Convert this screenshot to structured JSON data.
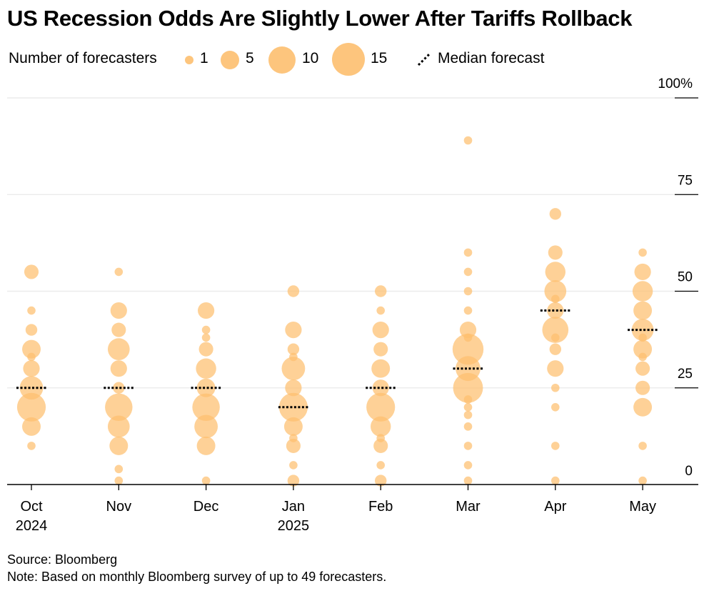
{
  "title": "US Recession Odds Are Slightly Lower After Tariffs Rollback",
  "legend": {
    "size_label": "Number of forecasters",
    "size_entries": [
      "1",
      "5",
      "10",
      "15"
    ],
    "median_label": "Median forecast"
  },
  "footer": {
    "source": "Source: Bloomberg",
    "note": "Note: Based on monthly Bloomberg survey of up to 49 forecasters."
  },
  "chart_data": {
    "type": "scatter",
    "subtype": "bubble",
    "x_categories": [
      {
        "line1": "Oct",
        "line2": "2024"
      },
      {
        "line1": "Nov",
        "line2": ""
      },
      {
        "line1": "Dec",
        "line2": ""
      },
      {
        "line1": "Jan",
        "line2": "2025"
      },
      {
        "line1": "Feb",
        "line2": ""
      },
      {
        "line1": "Mar",
        "line2": ""
      },
      {
        "line1": "Apr",
        "line2": ""
      },
      {
        "line1": "May",
        "line2": ""
      }
    ],
    "y_ticks": [
      "100%",
      "75",
      "50",
      "25",
      "0"
    ],
    "ylim": [
      0,
      100
    ],
    "bubble_color": "#fdbf6f",
    "median_color": "#000000",
    "size_legend_counts": [
      1,
      5,
      10,
      15
    ],
    "months": [
      {
        "median": 25,
        "points": [
          [
            55,
            3
          ],
          [
            45,
            1
          ],
          [
            40,
            2
          ],
          [
            35,
            5
          ],
          [
            33,
            1
          ],
          [
            30,
            4
          ],
          [
            25,
            8
          ],
          [
            20,
            12
          ],
          [
            15,
            5
          ],
          [
            10,
            1
          ]
        ]
      },
      {
        "median": 25,
        "points": [
          [
            55,
            1
          ],
          [
            45,
            4
          ],
          [
            40,
            3
          ],
          [
            35,
            7
          ],
          [
            30,
            4
          ],
          [
            25,
            2
          ],
          [
            20,
            11
          ],
          [
            15,
            7
          ],
          [
            10,
            5
          ],
          [
            4,
            1
          ],
          [
            1,
            1
          ]
        ]
      },
      {
        "median": 25,
        "points": [
          [
            45,
            4
          ],
          [
            40,
            1
          ],
          [
            38,
            1
          ],
          [
            35,
            3
          ],
          [
            30,
            6
          ],
          [
            25,
            5
          ],
          [
            20,
            11
          ],
          [
            15,
            8
          ],
          [
            10,
            5
          ],
          [
            1,
            1
          ]
        ]
      },
      {
        "median": 20,
        "points": [
          [
            50,
            2
          ],
          [
            40,
            4
          ],
          [
            35,
            2
          ],
          [
            33,
            1
          ],
          [
            30,
            8
          ],
          [
            25,
            4
          ],
          [
            20,
            12
          ],
          [
            15,
            5
          ],
          [
            12,
            1
          ],
          [
            10,
            3
          ],
          [
            5,
            1
          ],
          [
            1,
            2
          ]
        ]
      },
      {
        "median": 25,
        "points": [
          [
            50,
            2
          ],
          [
            45,
            1
          ],
          [
            40,
            4
          ],
          [
            35,
            3
          ],
          [
            30,
            5
          ],
          [
            25,
            4
          ],
          [
            20,
            12
          ],
          [
            15,
            6
          ],
          [
            12,
            1
          ],
          [
            10,
            3
          ],
          [
            5,
            1
          ],
          [
            1,
            2
          ]
        ]
      },
      {
        "median": 30,
        "points": [
          [
            89,
            1
          ],
          [
            60,
            1
          ],
          [
            55,
            1
          ],
          [
            50,
            1
          ],
          [
            45,
            1
          ],
          [
            40,
            4
          ],
          [
            38,
            1
          ],
          [
            35,
            14
          ],
          [
            30,
            9
          ],
          [
            25,
            13
          ],
          [
            22,
            1
          ],
          [
            20,
            1
          ],
          [
            18,
            1
          ],
          [
            15,
            1
          ],
          [
            10,
            1
          ],
          [
            5,
            1
          ],
          [
            1,
            1
          ]
        ]
      },
      {
        "median": 45,
        "points": [
          [
            70,
            2
          ],
          [
            60,
            3
          ],
          [
            55,
            6
          ],
          [
            50,
            7
          ],
          [
            48,
            1
          ],
          [
            45,
            4
          ],
          [
            40,
            10
          ],
          [
            38,
            1
          ],
          [
            35,
            2
          ],
          [
            30,
            4
          ],
          [
            25,
            1
          ],
          [
            20,
            1
          ],
          [
            10,
            1
          ],
          [
            1,
            1
          ]
        ]
      },
      {
        "median": 40,
        "points": [
          [
            60,
            1
          ],
          [
            55,
            4
          ],
          [
            50,
            6
          ],
          [
            45,
            5
          ],
          [
            40,
            7
          ],
          [
            38,
            1
          ],
          [
            35,
            5
          ],
          [
            33,
            1
          ],
          [
            30,
            3
          ],
          [
            25,
            3
          ],
          [
            20,
            5
          ],
          [
            10,
            1
          ],
          [
            1,
            1
          ]
        ]
      }
    ]
  }
}
